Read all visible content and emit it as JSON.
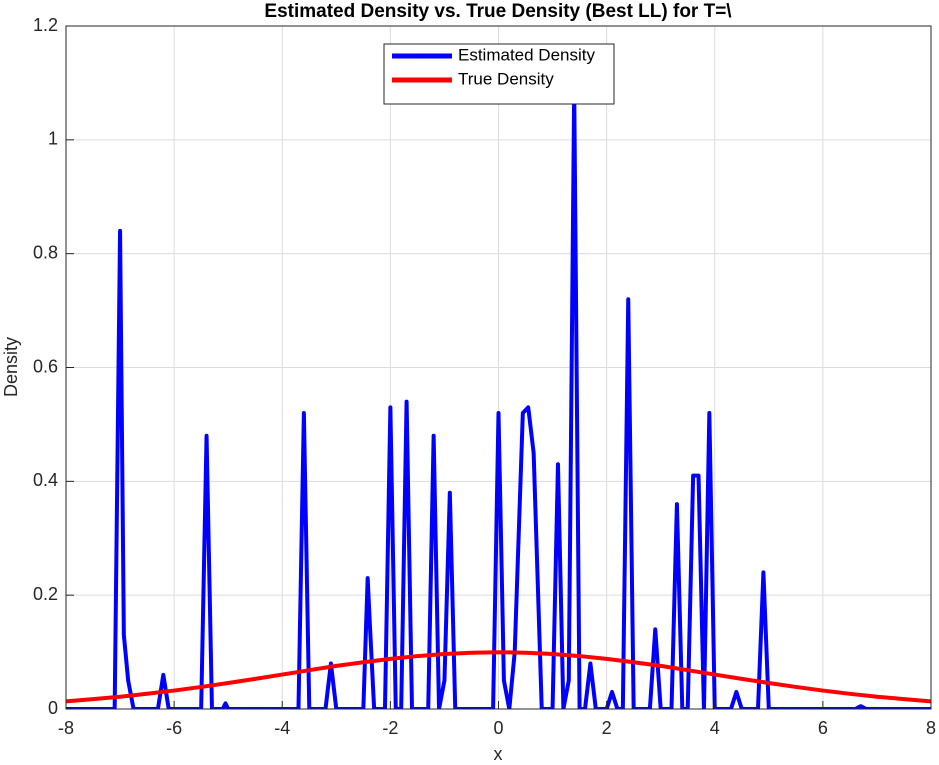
{
  "chart_data": {
    "type": "line",
    "title": "Estimated Density vs. True Density (Best LL) for T=\\",
    "x_label": "x",
    "y_label": "Density",
    "xlim": [
      -8,
      8
    ],
    "xticks": [
      -8,
      -6,
      -4,
      -2,
      0,
      2,
      4,
      6,
      8
    ],
    "ylim": [
      0,
      1.2
    ],
    "yticks": [
      0,
      0.2,
      0.4,
      0.6,
      0.8,
      1,
      1.2
    ],
    "grid": true,
    "legend_location": "north",
    "series": [
      {
        "name": "Estimated Density",
        "color": "#0000ff",
        "x": [
          -8,
          -7.1,
          -7.0,
          -6.93,
          -6.85,
          -6.75,
          -6.3,
          -6.2,
          -6.1,
          -5.5,
          -5.4,
          -5.3,
          -5.1,
          -5.05,
          -5.0,
          -3.7,
          -3.6,
          -3.5,
          -3.2,
          -3.1,
          -3.0,
          -2.5,
          -2.42,
          -2.38,
          -2.3,
          -2.1,
          -2.0,
          -1.9,
          -1.8,
          -1.7,
          -1.6,
          -1.3,
          -1.2,
          -1.1,
          -1.0,
          -0.9,
          -0.8,
          -0.1,
          0.0,
          0.1,
          0.2,
          0.3,
          0.45,
          0.55,
          0.65,
          0.8,
          1.0,
          1.1,
          1.2,
          1.3,
          1.4,
          1.5,
          1.6,
          1.7,
          1.8,
          2.0,
          2.1,
          2.2,
          2.3,
          2.4,
          2.5,
          2.8,
          2.9,
          3.0,
          3.2,
          3.3,
          3.4,
          3.5,
          3.6,
          3.7,
          3.8,
          3.9,
          4.0,
          4.3,
          4.4,
          4.5,
          4.8,
          4.9,
          5.0,
          6.6,
          6.7,
          6.8,
          8
        ],
        "values": [
          0,
          0,
          0.84,
          0.13,
          0.05,
          0,
          0,
          0.06,
          0,
          0,
          0.48,
          0,
          0,
          0.01,
          0,
          0,
          0.52,
          0,
          0,
          0.08,
          0,
          0,
          0.23,
          0.15,
          0,
          0,
          0.53,
          0,
          0,
          0.54,
          0,
          0,
          0.48,
          0,
          0.05,
          0.38,
          0,
          0,
          0.52,
          0.05,
          0,
          0.1,
          0.52,
          0.53,
          0.45,
          0,
          0,
          0.43,
          0,
          0.05,
          1.09,
          0,
          0,
          0.08,
          0,
          0,
          0.03,
          0,
          0,
          0.72,
          0,
          0,
          0.14,
          0,
          0,
          0.36,
          0,
          0,
          0.41,
          0.41,
          0,
          0.52,
          0,
          0,
          0.03,
          0,
          0,
          0.24,
          0,
          0,
          0.005,
          0,
          0
        ]
      },
      {
        "name": "True Density",
        "color": "#ff0000",
        "x": [
          -8,
          -7.5,
          -7,
          -6.5,
          -6,
          -5.5,
          -5,
          -4.5,
          -4,
          -3.5,
          -3,
          -2.5,
          -2,
          -1.5,
          -1,
          -0.5,
          0,
          0.5,
          1,
          1.5,
          2,
          2.5,
          3,
          3.5,
          4,
          4.5,
          5,
          5.5,
          6,
          6.5,
          7,
          7.5,
          8
        ],
        "values": [
          0.0135,
          0.0173,
          0.0216,
          0.0267,
          0.0324,
          0.0388,
          0.0457,
          0.0529,
          0.0605,
          0.0682,
          0.0757,
          0.0821,
          0.088,
          0.093,
          0.0967,
          0.0989,
          0.0997,
          0.0989,
          0.0967,
          0.093,
          0.088,
          0.0821,
          0.0757,
          0.0682,
          0.0605,
          0.0529,
          0.0457,
          0.0388,
          0.0324,
          0.0267,
          0.0216,
          0.0173,
          0.0135
        ]
      }
    ]
  }
}
